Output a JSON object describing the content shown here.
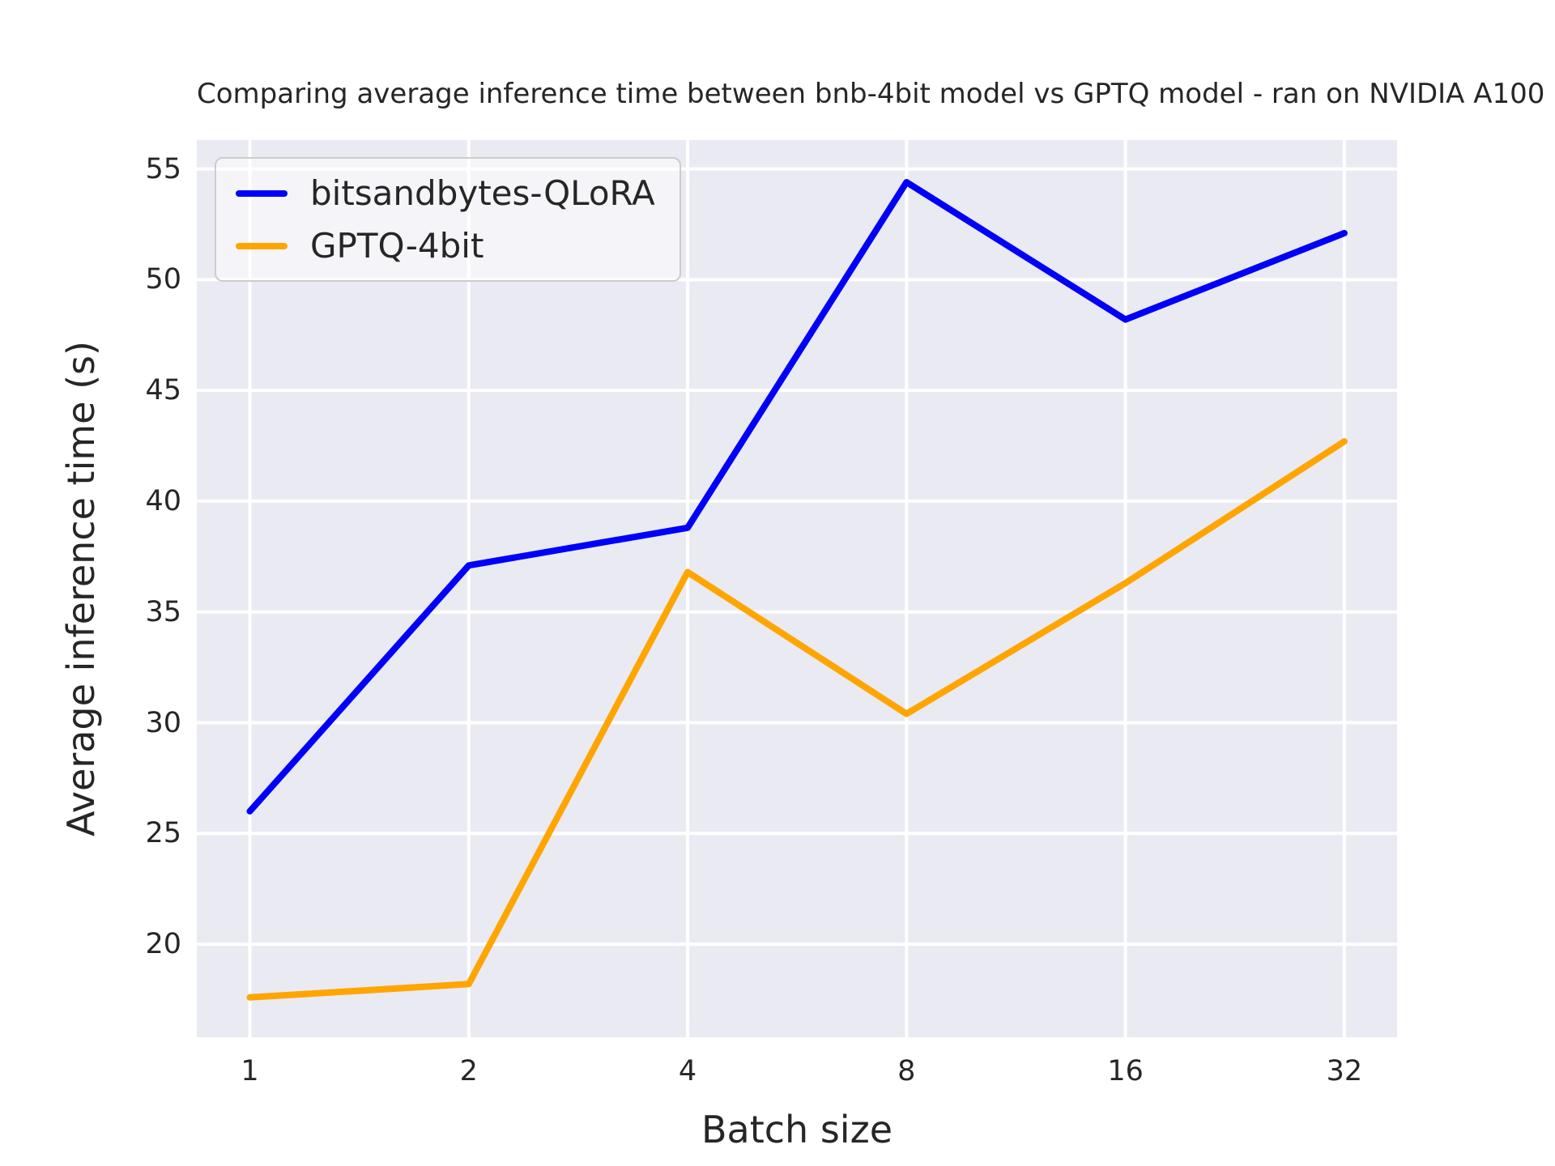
{
  "chart_data": {
    "type": "line",
    "title": "Comparing average inference time between bnb-4bit model vs GPTQ model - ran on NVIDIA A100",
    "xlabel": "Batch size",
    "ylabel": "Average inference time (s)",
    "categories": [
      "1",
      "2",
      "4",
      "8",
      "16",
      "32"
    ],
    "series": [
      {
        "name": "bitsandbytes-QLoRA",
        "color": "#0000fa",
        "values": [
          26.0,
          37.1,
          38.8,
          54.4,
          48.2,
          52.1
        ]
      },
      {
        "name": "GPTQ-4bit",
        "color": "#ffa500",
        "values": [
          17.6,
          18.2,
          36.8,
          30.4,
          36.3,
          42.7
        ]
      }
    ],
    "yticks": [
      20,
      25,
      30,
      35,
      40,
      45,
      50,
      55
    ],
    "ylim": [
      15.8,
      56.3
    ],
    "x_scale": "log2",
    "grid": true,
    "legend_position": "upper-left",
    "plot_bg_color": "#eaeaf2",
    "grid_color": "#ffffff",
    "text_color": "#262626"
  }
}
